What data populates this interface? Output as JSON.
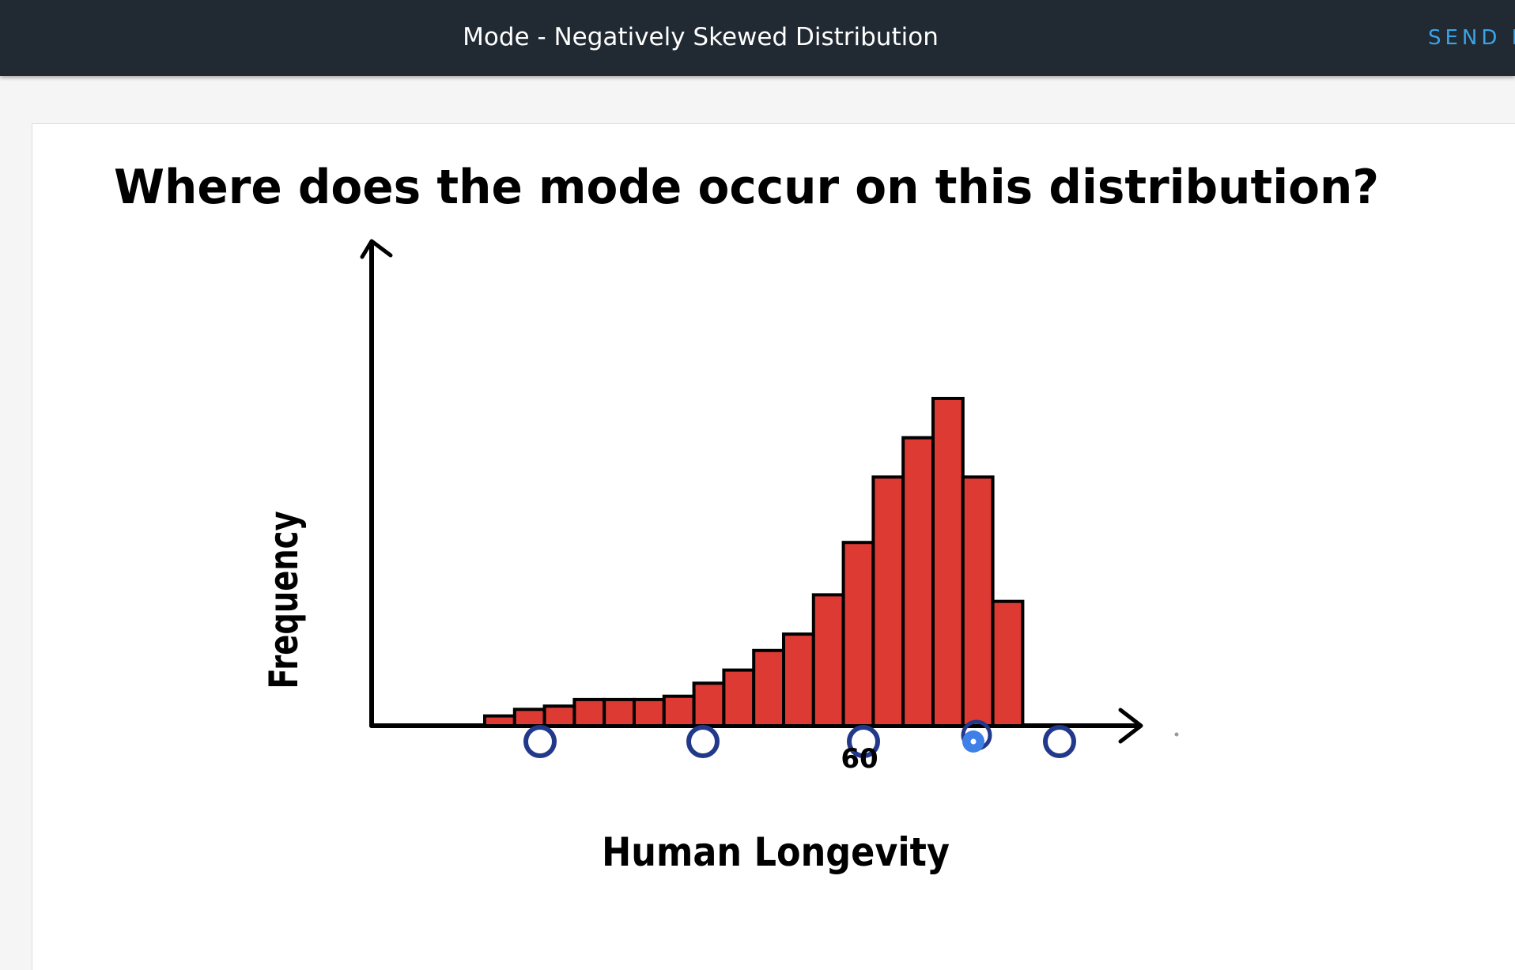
{
  "header": {
    "title": "Mode - Negatively Skewed Distribution",
    "send_label": "SEND F"
  },
  "question": "Where does the mode occur on this distribution?",
  "answer_options": [
    {
      "id": "option-1",
      "selected": false
    },
    {
      "id": "option-2",
      "selected": false
    },
    {
      "id": "option-3",
      "selected": false
    },
    {
      "id": "option-4",
      "selected": true
    },
    {
      "id": "option-5",
      "selected": false
    }
  ],
  "colors": {
    "bar_fill": "#dd3a33",
    "option_ring": "#22388a",
    "option_selected": "#3f7fe8",
    "header_bg": "#212932",
    "send_text": "#3aa4e6"
  },
  "chart_data": {
    "type": "bar",
    "title": "Where does the mode occur on this distribution?",
    "xlabel": "Human Longevity",
    "ylabel": "Frequency",
    "x_tick_labels": [
      "60"
    ],
    "ylim": [
      0,
      10
    ],
    "values": [
      0.3,
      0.5,
      0.6,
      0.8,
      0.8,
      0.8,
      0.9,
      1.3,
      1.7,
      2.3,
      2.8,
      4.0,
      5.6,
      7.6,
      8.8,
      10.0,
      7.6,
      3.8
    ],
    "grid": false,
    "legend": "none"
  }
}
